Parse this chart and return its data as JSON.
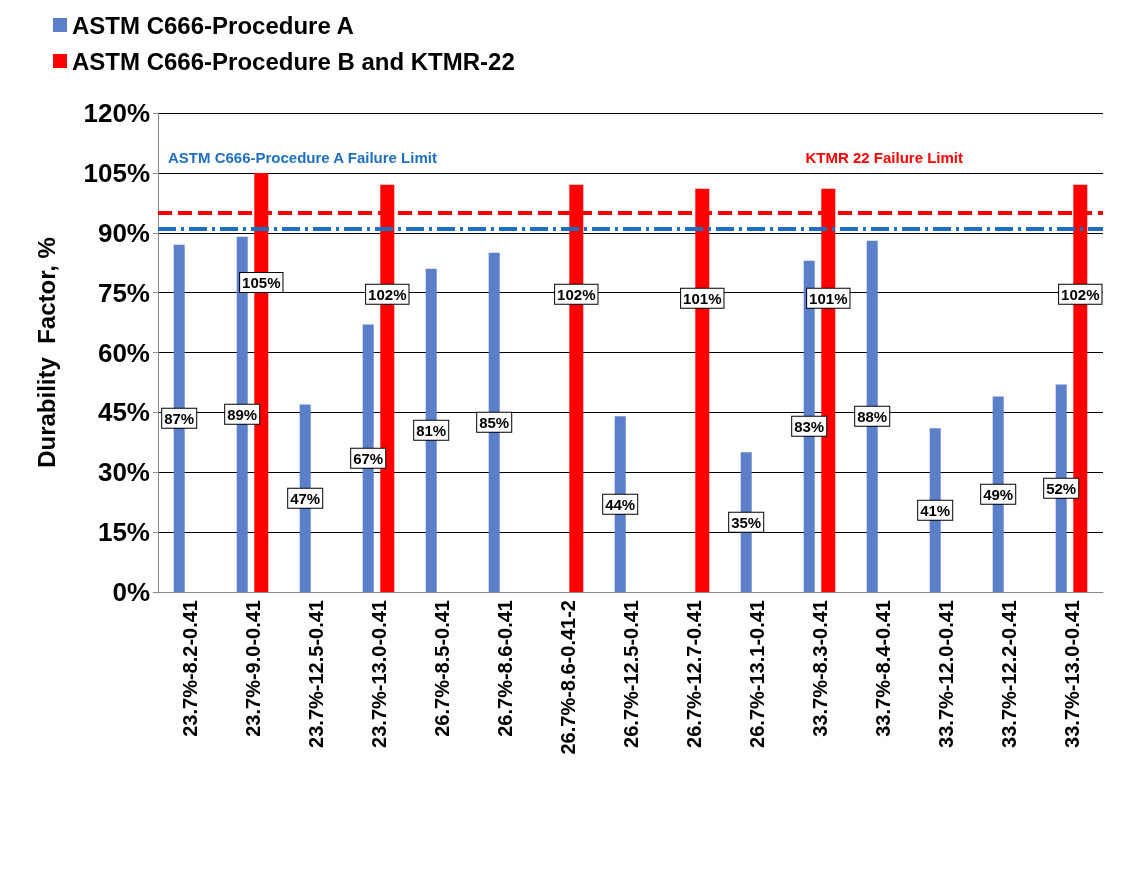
{
  "chart_data": {
    "type": "bar",
    "ylabel": "Durability  Factor, %",
    "categories": [
      "23.7%-8.2-0.41",
      "23.7%-9.0-0.41",
      "23.7%-12.5-0.41",
      "23.7%-13.0-0.41",
      "26.7%-8.5-0.41",
      "26.7%-8.6-0.41",
      "26.7%-8.6-0.41-2",
      "26.7%-12.5-0.41",
      "26.7%-12.7-0.41",
      "26.7%-13.1-0.41",
      "33.7%-8.3-0.41",
      "33.7%-8.4-0.41",
      "33.7%-12.0-0.41",
      "33.7%-12.2-0.41",
      "33.7%-13.0-0.41"
    ],
    "series": [
      {
        "name": "ASTM C666-Procedure A",
        "color": "#5b7fc8",
        "values": [
          87,
          89,
          47,
          67,
          81,
          85,
          null,
          44,
          null,
          35,
          83,
          88,
          41,
          49,
          52
        ],
        "value_labels": [
          "87%",
          "89%",
          "47%",
          "67%",
          "81%",
          "85%",
          null,
          "44%",
          null,
          "35%",
          "83%",
          "88%",
          "41%",
          "49%",
          "52%"
        ]
      },
      {
        "name": "ASTM C666-Procedure B and KTMR-22",
        "color": "#ff0000",
        "values": [
          null,
          105,
          null,
          102,
          null,
          null,
          102,
          null,
          101,
          null,
          101,
          null,
          null,
          null,
          102
        ],
        "value_labels": [
          null,
          "105%",
          null,
          "102%",
          null,
          null,
          "102%",
          null,
          "101%",
          null,
          "101%",
          null,
          null,
          null,
          "102%"
        ]
      }
    ],
    "ylim": [
      0,
      120
    ],
    "yticks": [
      {
        "value": 0,
        "label": "0%"
      },
      {
        "value": 15,
        "label": "15%"
      },
      {
        "value": 30,
        "label": "30%"
      },
      {
        "value": 45,
        "label": "45%"
      },
      {
        "value": 60,
        "label": "60%"
      },
      {
        "value": 75,
        "label": "75%"
      },
      {
        "value": 90,
        "label": "90%"
      },
      {
        "value": 105,
        "label": "105%"
      },
      {
        "value": 120,
        "label": "120%"
      }
    ],
    "ref_lines": [
      {
        "axis": "y",
        "value": 91,
        "label": "ASTM C666-Procedure A Failure Limit",
        "color": "#1f6fc0",
        "line_style": "dashdot"
      },
      {
        "axis": "y",
        "value": 95,
        "label": "KTMR 22 Failure Limit",
        "color": "#ff0000",
        "line_style": "dashed"
      }
    ],
    "grid": "y",
    "legend": "top left"
  }
}
